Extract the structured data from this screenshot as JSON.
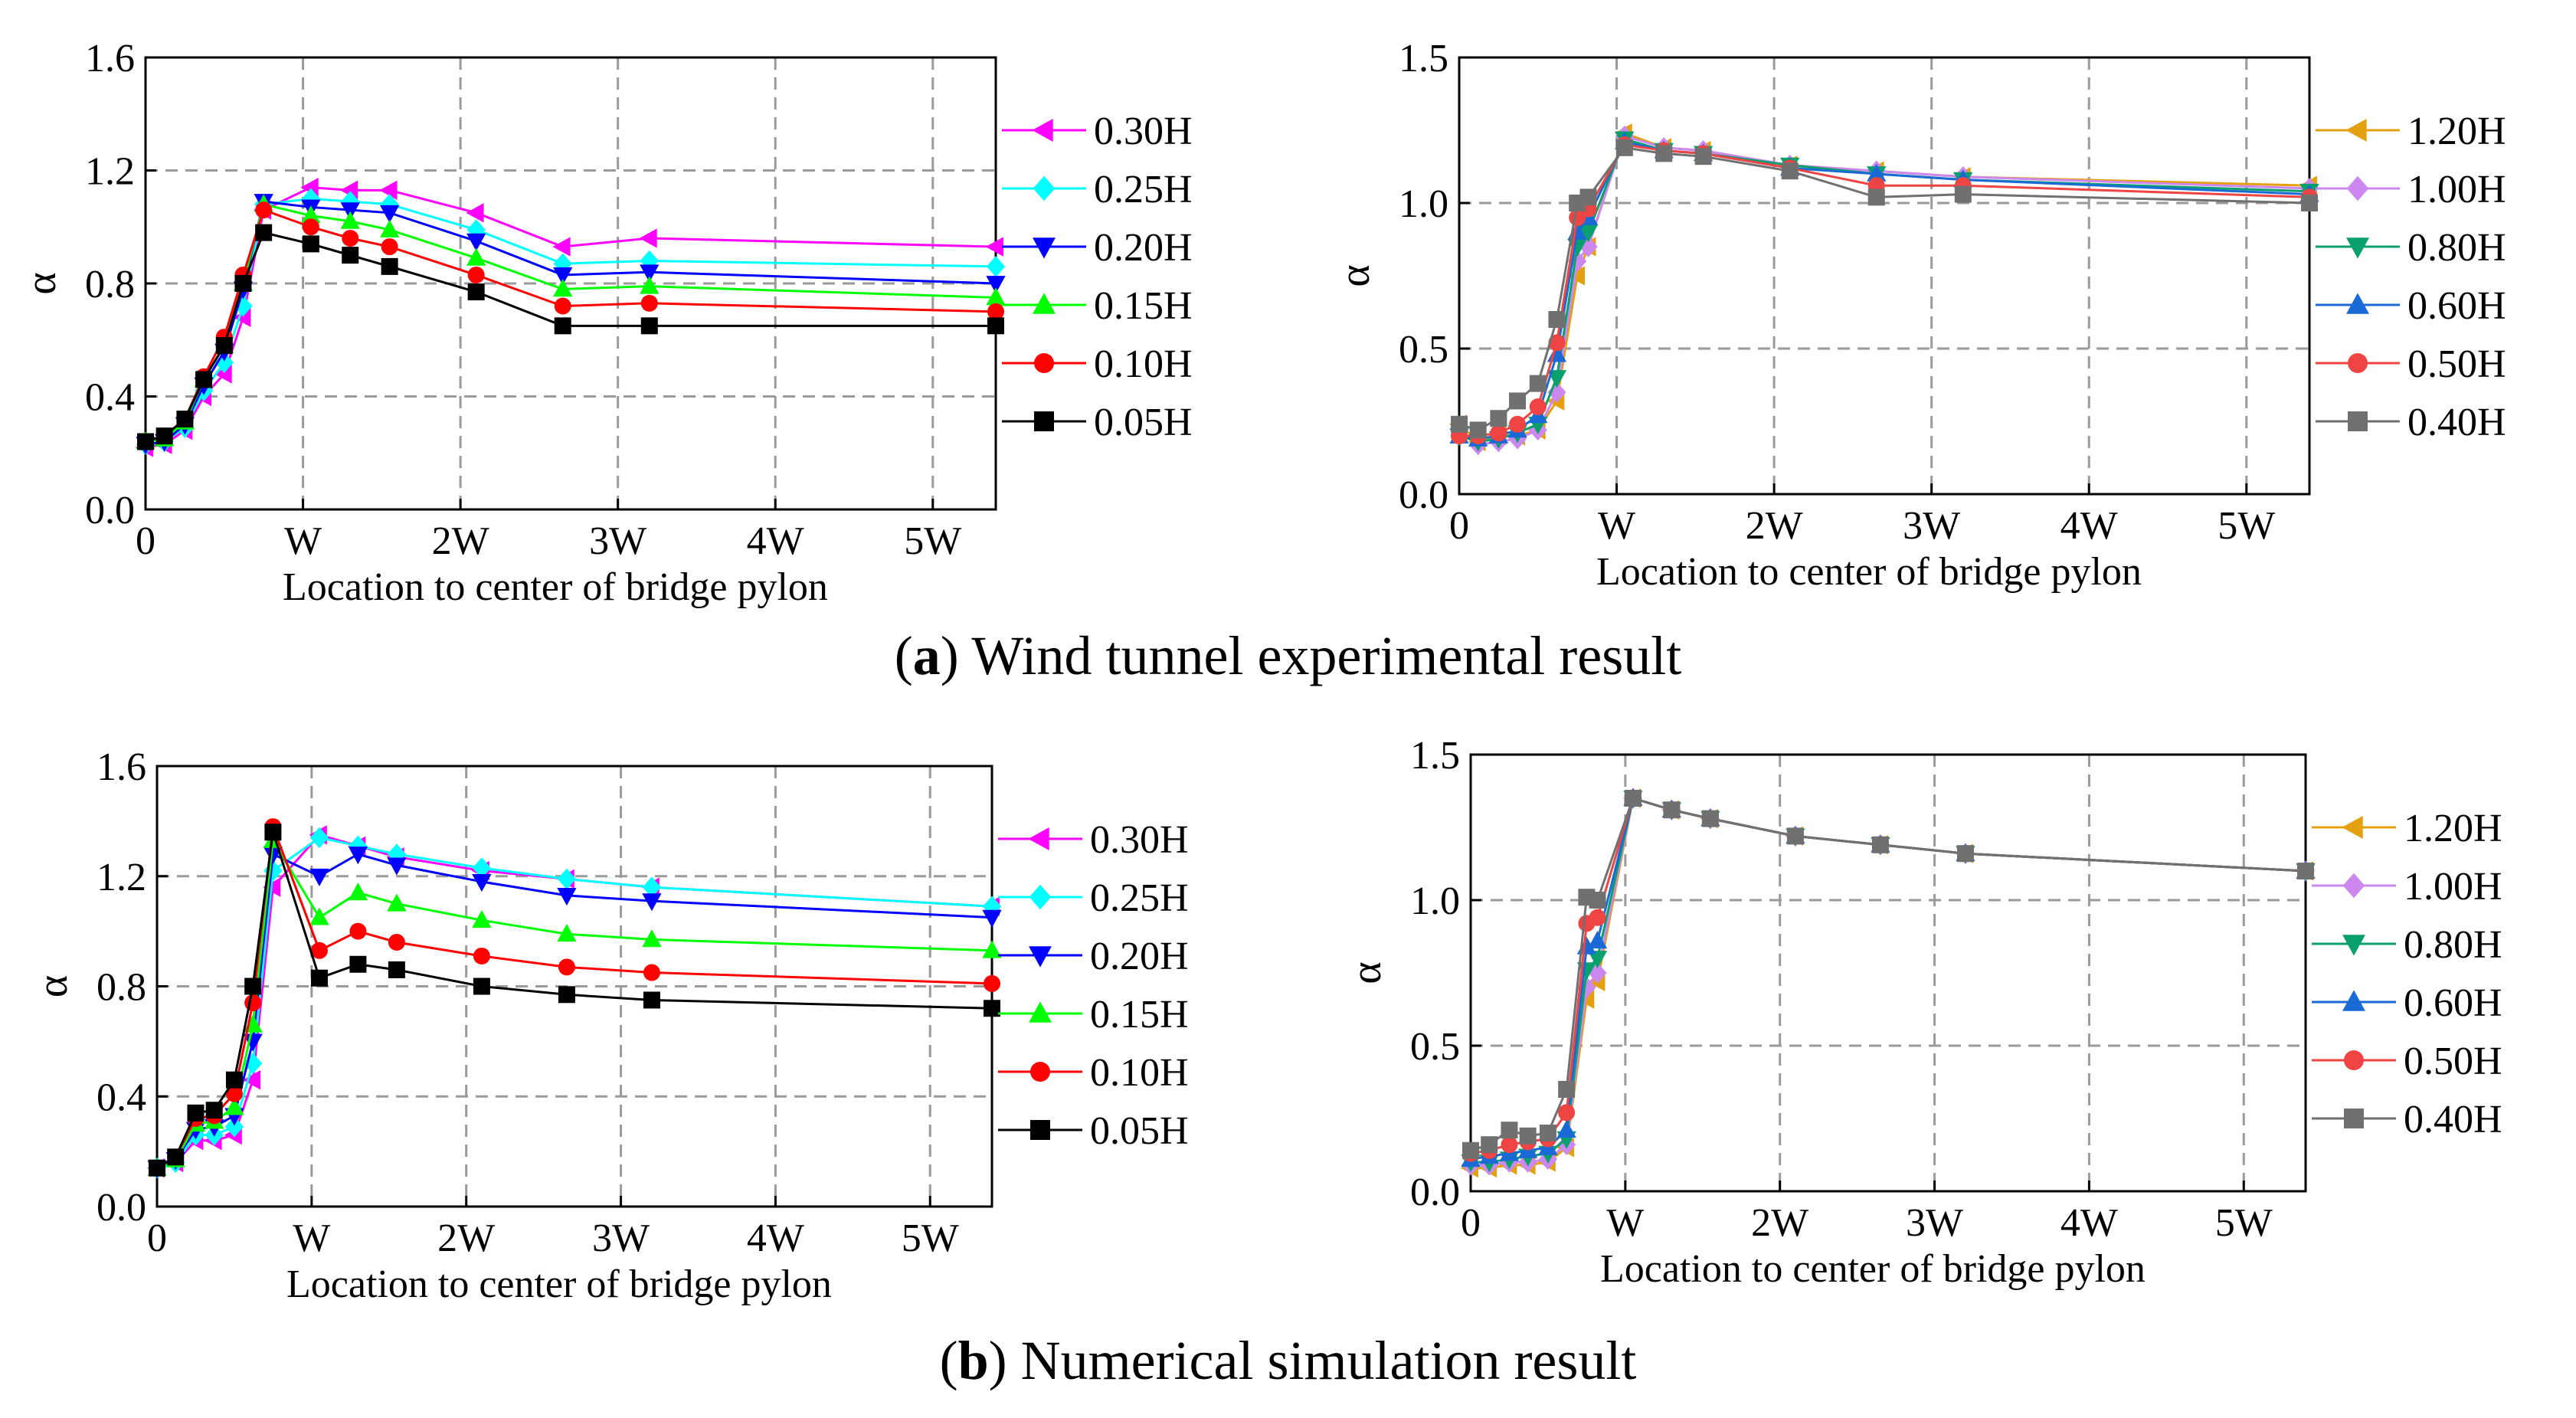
{
  "captions": {
    "a_label": "a",
    "a_text": "Wind tunnel experimental result",
    "b_label": "b",
    "b_text": "Numerical simulation result"
  },
  "chart_data": [
    {
      "type": "line",
      "panel": "a-left",
      "xlabel": "Location to center of bridge pylon",
      "ylabel": "α",
      "ylim": [
        0,
        1.6
      ],
      "yticks": [
        0.0,
        0.4,
        0.8,
        1.2,
        1.6
      ],
      "ytick_labels": [
        "0.0",
        "0.4",
        "0.8",
        "1.2",
        "1.6"
      ],
      "xlim": [
        0,
        5.4
      ],
      "xticks": [
        0,
        1,
        2,
        3,
        4,
        5
      ],
      "xtick_labels": [
        "0",
        "W",
        "2W",
        "3W",
        "4W",
        "5W"
      ],
      "grid": true,
      "legend_position": "right",
      "series": [
        {
          "name": "0.30H",
          "color": "#ff00ff",
          "marker": "triangle-left",
          "x": [
            0,
            0.12,
            0.25,
            0.37,
            0.5,
            0.62,
            0.75,
            1.05,
            1.3,
            1.55,
            2.1,
            2.65,
            3.2,
            5.4
          ],
          "y": [
            0.22,
            0.23,
            0.28,
            0.4,
            0.48,
            0.68,
            1.06,
            1.14,
            1.13,
            1.13,
            1.05,
            0.93,
            0.96,
            0.93
          ]
        },
        {
          "name": "0.25H",
          "color": "#00ffff",
          "marker": "diamond",
          "x": [
            0,
            0.12,
            0.25,
            0.37,
            0.5,
            0.62,
            0.75,
            1.05,
            1.3,
            1.55,
            2.1,
            2.65,
            3.2,
            5.4
          ],
          "y": [
            0.23,
            0.24,
            0.29,
            0.42,
            0.52,
            0.72,
            1.08,
            1.1,
            1.09,
            1.08,
            0.99,
            0.87,
            0.88,
            0.86
          ]
        },
        {
          "name": "0.20H",
          "color": "#0000ff",
          "marker": "triangle-down",
          "x": [
            0,
            0.12,
            0.25,
            0.37,
            0.5,
            0.62,
            0.75,
            1.05,
            1.3,
            1.55,
            2.1,
            2.65,
            3.2,
            5.4
          ],
          "y": [
            0.23,
            0.24,
            0.3,
            0.44,
            0.56,
            0.78,
            1.09,
            1.07,
            1.06,
            1.05,
            0.95,
            0.83,
            0.84,
            0.8
          ]
        },
        {
          "name": "0.15H",
          "color": "#00ff00",
          "marker": "triangle-up",
          "x": [
            0,
            0.12,
            0.25,
            0.37,
            0.5,
            0.62,
            0.75,
            1.05,
            1.3,
            1.55,
            2.1,
            2.65,
            3.2,
            5.4
          ],
          "y": [
            0.24,
            0.25,
            0.31,
            0.46,
            0.58,
            0.8,
            1.08,
            1.04,
            1.02,
            0.99,
            0.89,
            0.78,
            0.79,
            0.75
          ]
        },
        {
          "name": "0.10H",
          "color": "#ff0000",
          "marker": "circle",
          "x": [
            0,
            0.12,
            0.25,
            0.37,
            0.5,
            0.62,
            0.75,
            1.05,
            1.3,
            1.55,
            2.1,
            2.65,
            3.2,
            5.4
          ],
          "y": [
            0.24,
            0.26,
            0.32,
            0.47,
            0.61,
            0.83,
            1.06,
            1.0,
            0.96,
            0.93,
            0.83,
            0.72,
            0.73,
            0.7
          ]
        },
        {
          "name": "0.05H",
          "color": "#000000",
          "marker": "square",
          "x": [
            0,
            0.12,
            0.25,
            0.37,
            0.5,
            0.62,
            0.75,
            1.05,
            1.3,
            1.55,
            2.1,
            2.65,
            3.2,
            5.4
          ],
          "y": [
            0.24,
            0.26,
            0.32,
            0.46,
            0.58,
            0.8,
            0.98,
            0.94,
            0.9,
            0.86,
            0.77,
            0.65,
            0.65,
            0.65
          ]
        }
      ]
    },
    {
      "type": "line",
      "panel": "a-right",
      "xlabel": "Location to center of bridge pylon",
      "ylabel": "α",
      "ylim": [
        0,
        1.5
      ],
      "yticks": [
        0.0,
        0.5,
        1.0,
        1.5
      ],
      "ytick_labels": [
        "0.0",
        "0.5",
        "1.0",
        "1.5"
      ],
      "xlim": [
        0,
        5.4
      ],
      "xticks": [
        0,
        1,
        2,
        3,
        4,
        5
      ],
      "xtick_labels": [
        "0",
        "W",
        "2W",
        "3W",
        "4W",
        "5W"
      ],
      "grid": true,
      "legend_position": "right",
      "series": [
        {
          "name": "1.20H",
          "color": "#e3a010",
          "marker": "triangle-left",
          "x": [
            0,
            0.12,
            0.25,
            0.37,
            0.5,
            0.62,
            0.75,
            0.82,
            1.05,
            1.3,
            1.55,
            2.1,
            2.65,
            3.2,
            5.4
          ],
          "y": [
            0.24,
            0.18,
            0.2,
            0.2,
            0.22,
            0.32,
            0.75,
            0.85,
            1.24,
            1.19,
            1.18,
            1.13,
            1.11,
            1.09,
            1.06
          ]
        },
        {
          "name": "1.00H",
          "color": "#cc88ee",
          "marker": "diamond",
          "x": [
            0,
            0.12,
            0.25,
            0.37,
            0.5,
            0.62,
            0.75,
            0.82,
            1.05,
            1.3,
            1.55,
            2.1,
            2.65,
            3.2,
            5.4
          ],
          "y": [
            0.22,
            0.17,
            0.18,
            0.19,
            0.22,
            0.35,
            0.8,
            0.85,
            1.23,
            1.19,
            1.18,
            1.13,
            1.11,
            1.09,
            1.05
          ]
        },
        {
          "name": "0.80H",
          "color": "#0aa06e",
          "marker": "triangle-down",
          "x": [
            0,
            0.12,
            0.25,
            0.37,
            0.5,
            0.62,
            0.75,
            0.82,
            1.05,
            1.3,
            1.55,
            2.1,
            2.65,
            3.2,
            5.4
          ],
          "y": [
            0.2,
            0.18,
            0.19,
            0.21,
            0.24,
            0.4,
            0.85,
            0.9,
            1.22,
            1.18,
            1.17,
            1.13,
            1.1,
            1.08,
            1.04
          ]
        },
        {
          "name": "0.60H",
          "color": "#1a6ad6",
          "marker": "triangle-up",
          "x": [
            0,
            0.12,
            0.25,
            0.37,
            0.5,
            0.62,
            0.75,
            0.82,
            1.05,
            1.3,
            1.55,
            2.1,
            2.65,
            3.2,
            5.4
          ],
          "y": [
            0.2,
            0.19,
            0.2,
            0.22,
            0.27,
            0.48,
            0.9,
            0.95,
            1.21,
            1.18,
            1.17,
            1.12,
            1.1,
            1.08,
            1.03
          ]
        },
        {
          "name": "0.50H",
          "color": "#ee4444",
          "marker": "circle",
          "x": [
            0,
            0.12,
            0.25,
            0.37,
            0.5,
            0.62,
            0.75,
            0.82,
            1.05,
            1.3,
            1.55,
            2.1,
            2.65,
            3.2,
            5.4
          ],
          "y": [
            0.2,
            0.2,
            0.21,
            0.24,
            0.3,
            0.52,
            0.95,
            0.98,
            1.2,
            1.18,
            1.17,
            1.12,
            1.06,
            1.06,
            1.02
          ]
        },
        {
          "name": "0.40H",
          "color": "#707070",
          "marker": "square",
          "x": [
            0,
            0.12,
            0.25,
            0.37,
            0.5,
            0.62,
            0.75,
            0.82,
            1.05,
            1.3,
            1.55,
            2.1,
            2.65,
            3.2,
            5.4
          ],
          "y": [
            0.24,
            0.22,
            0.26,
            0.32,
            0.38,
            0.6,
            1.0,
            1.02,
            1.19,
            1.17,
            1.16,
            1.11,
            1.02,
            1.03,
            1.0
          ]
        }
      ]
    },
    {
      "type": "line",
      "panel": "b-left",
      "xlabel": "Location to center of bridge pylon",
      "ylabel": "α",
      "ylim": [
        0,
        1.6
      ],
      "yticks": [
        0.0,
        0.4,
        0.8,
        1.2,
        1.6
      ],
      "ytick_labels": [
        "0.0",
        "0.4",
        "0.8",
        "1.2",
        "1.6"
      ],
      "xlim": [
        0,
        5.4
      ],
      "xticks": [
        0,
        1,
        2,
        3,
        4,
        5
      ],
      "xtick_labels": [
        "0",
        "W",
        "2W",
        "3W",
        "4W",
        "5W"
      ],
      "grid": true,
      "legend_position": "right",
      "series": [
        {
          "name": "0.30H",
          "color": "#ff00ff",
          "marker": "triangle-left",
          "x": [
            0,
            0.12,
            0.25,
            0.37,
            0.5,
            0.62,
            0.75,
            1.05,
            1.3,
            1.55,
            2.1,
            2.65,
            3.2,
            5.4
          ],
          "y": [
            0.14,
            0.16,
            0.24,
            0.24,
            0.26,
            0.46,
            1.16,
            1.35,
            1.31,
            1.27,
            1.22,
            1.19,
            1.16,
            1.09
          ]
        },
        {
          "name": "0.25H",
          "color": "#00ffff",
          "marker": "diamond",
          "x": [
            0,
            0.12,
            0.25,
            0.37,
            0.5,
            0.62,
            0.75,
            1.05,
            1.3,
            1.55,
            2.1,
            2.65,
            3.2,
            5.4
          ],
          "y": [
            0.14,
            0.16,
            0.26,
            0.26,
            0.29,
            0.52,
            1.22,
            1.34,
            1.31,
            1.28,
            1.23,
            1.19,
            1.16,
            1.09
          ]
        },
        {
          "name": "0.20H",
          "color": "#0000ff",
          "marker": "triangle-down",
          "x": [
            0,
            0.12,
            0.25,
            0.37,
            0.5,
            0.62,
            0.75,
            1.05,
            1.3,
            1.55,
            2.1,
            2.65,
            3.2,
            5.4
          ],
          "y": [
            0.14,
            0.17,
            0.28,
            0.29,
            0.33,
            0.6,
            1.28,
            1.2,
            1.28,
            1.24,
            1.18,
            1.13,
            1.11,
            1.05
          ]
        },
        {
          "name": "0.15H",
          "color": "#00ff00",
          "marker": "triangle-up",
          "x": [
            0,
            0.12,
            0.25,
            0.37,
            0.5,
            0.62,
            0.75,
            1.05,
            1.3,
            1.55,
            2.1,
            2.65,
            3.2,
            5.4
          ],
          "y": [
            0.14,
            0.17,
            0.3,
            0.31,
            0.36,
            0.66,
            1.33,
            1.05,
            1.14,
            1.1,
            1.04,
            0.99,
            0.97,
            0.93
          ]
        },
        {
          "name": "0.10H",
          "color": "#ff0000",
          "marker": "circle",
          "x": [
            0,
            0.12,
            0.25,
            0.37,
            0.5,
            0.62,
            0.75,
            1.05,
            1.3,
            1.55,
            2.1,
            2.65,
            3.2,
            5.4
          ],
          "y": [
            0.14,
            0.18,
            0.32,
            0.33,
            0.41,
            0.74,
            1.38,
            0.93,
            1.0,
            0.96,
            0.91,
            0.87,
            0.85,
            0.81
          ]
        },
        {
          "name": "0.05H",
          "color": "#000000",
          "marker": "square",
          "x": [
            0,
            0.12,
            0.25,
            0.37,
            0.5,
            0.62,
            0.75,
            1.05,
            1.3,
            1.55,
            2.1,
            2.65,
            3.2,
            5.4
          ],
          "y": [
            0.14,
            0.18,
            0.34,
            0.35,
            0.46,
            0.8,
            1.36,
            0.83,
            0.88,
            0.86,
            0.8,
            0.77,
            0.75,
            0.72
          ]
        }
      ]
    },
    {
      "type": "line",
      "panel": "b-right",
      "xlabel": "Location to center of bridge pylon",
      "ylabel": "α",
      "ylim": [
        0,
        1.5
      ],
      "yticks": [
        0.0,
        0.5,
        1.0,
        1.5
      ],
      "ytick_labels": [
        "0.0",
        "0.5",
        "1.0",
        "1.5"
      ],
      "xlim": [
        0,
        5.4
      ],
      "xticks": [
        0,
        1,
        2,
        3,
        4,
        5
      ],
      "xtick_labels": [
        "0",
        "W",
        "2W",
        "3W",
        "4W",
        "5W"
      ],
      "grid": true,
      "legend_position": "right",
      "series": [
        {
          "name": "1.20H",
          "color": "#e3a010",
          "marker": "triangle-left",
          "x": [
            0,
            0.12,
            0.25,
            0.37,
            0.5,
            0.62,
            0.75,
            0.82,
            1.05,
            1.3,
            1.55,
            2.1,
            2.65,
            3.2,
            5.4
          ],
          "y": [
            0.08,
            0.08,
            0.09,
            0.09,
            0.1,
            0.15,
            0.66,
            0.72,
            1.35,
            1.31,
            1.28,
            1.22,
            1.19,
            1.16,
            1.1
          ]
        },
        {
          "name": "1.00H",
          "color": "#cc88ee",
          "marker": "diamond",
          "x": [
            0,
            0.12,
            0.25,
            0.37,
            0.5,
            0.62,
            0.75,
            0.82,
            1.05,
            1.3,
            1.55,
            2.1,
            2.65,
            3.2,
            5.4
          ],
          "y": [
            0.09,
            0.09,
            0.1,
            0.1,
            0.11,
            0.16,
            0.7,
            0.75,
            1.35,
            1.31,
            1.28,
            1.22,
            1.19,
            1.16,
            1.1
          ]
        },
        {
          "name": "0.80H",
          "color": "#0aa06e",
          "marker": "triangle-down",
          "x": [
            0,
            0.12,
            0.25,
            0.37,
            0.5,
            0.62,
            0.75,
            0.82,
            1.05,
            1.3,
            1.55,
            2.1,
            2.65,
            3.2,
            5.4
          ],
          "y": [
            0.1,
            0.1,
            0.11,
            0.12,
            0.13,
            0.18,
            0.76,
            0.8,
            1.35,
            1.31,
            1.28,
            1.22,
            1.19,
            1.16,
            1.1
          ]
        },
        {
          "name": "0.60H",
          "color": "#1a6ad6",
          "marker": "triangle-up",
          "x": [
            0,
            0.12,
            0.25,
            0.37,
            0.5,
            0.62,
            0.75,
            0.82,
            1.05,
            1.3,
            1.55,
            2.1,
            2.65,
            3.2,
            5.4
          ],
          "y": [
            0.11,
            0.12,
            0.13,
            0.14,
            0.15,
            0.21,
            0.84,
            0.86,
            1.35,
            1.31,
            1.28,
            1.22,
            1.19,
            1.16,
            1.1
          ]
        },
        {
          "name": "0.50H",
          "color": "#ee4444",
          "marker": "circle",
          "x": [
            0,
            0.12,
            0.25,
            0.37,
            0.5,
            0.62,
            0.75,
            0.82,
            1.05,
            1.3,
            1.55,
            2.1,
            2.65,
            3.2,
            5.4
          ],
          "y": [
            0.13,
            0.14,
            0.16,
            0.17,
            0.18,
            0.27,
            0.92,
            0.94,
            1.35,
            1.31,
            1.28,
            1.22,
            1.19,
            1.16,
            1.1
          ]
        },
        {
          "name": "0.40H",
          "color": "#707070",
          "marker": "square",
          "x": [
            0,
            0.12,
            0.25,
            0.37,
            0.5,
            0.62,
            0.75,
            0.82,
            1.05,
            1.3,
            1.55,
            2.1,
            2.65,
            3.2,
            5.4
          ],
          "y": [
            0.14,
            0.16,
            0.21,
            0.19,
            0.2,
            0.35,
            1.01,
            1.0,
            1.35,
            1.31,
            1.28,
            1.22,
            1.19,
            1.16,
            1.1
          ]
        }
      ]
    }
  ]
}
